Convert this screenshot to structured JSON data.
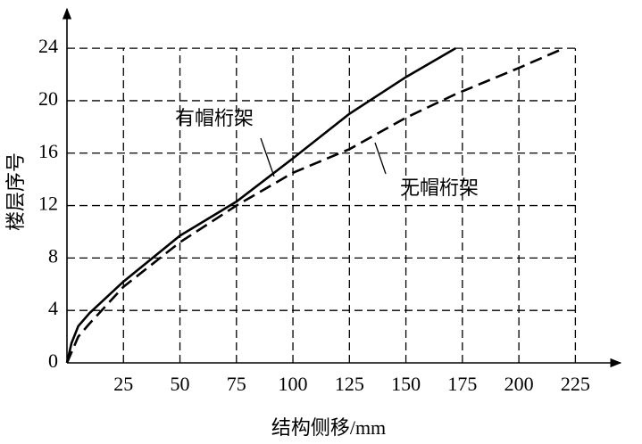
{
  "chart_data": {
    "type": "line",
    "x_label": "结构侧移/mm",
    "y_label": "楼层序号",
    "x": [
      0,
      2,
      5,
      10,
      25,
      50,
      75,
      100,
      125,
      150,
      172,
      200,
      220
    ],
    "series": [
      {
        "name": "有帽桁架",
        "color": "#000000",
        "dash": "solid",
        "values": [
          0,
          1.5,
          2.8,
          3.8,
          6.2,
          9.7,
          12.3,
          15.6,
          19.0,
          21.8,
          24,
          null,
          null
        ]
      },
      {
        "name": "无帽桁架",
        "color": "#000000",
        "dash": "dashed",
        "values": [
          0,
          0.8,
          2.0,
          3.0,
          5.8,
          9.2,
          12.0,
          14.5,
          16.3,
          18.7,
          20.5,
          22.5,
          24
        ]
      }
    ],
    "xlim": [
      0,
      245
    ],
    "ylim": [
      0,
      27
    ],
    "xticks": [
      25,
      50,
      75,
      100,
      125,
      150,
      175,
      200,
      225
    ],
    "yticks": [
      0,
      4,
      8,
      12,
      16,
      20,
      24
    ],
    "grid": true
  }
}
